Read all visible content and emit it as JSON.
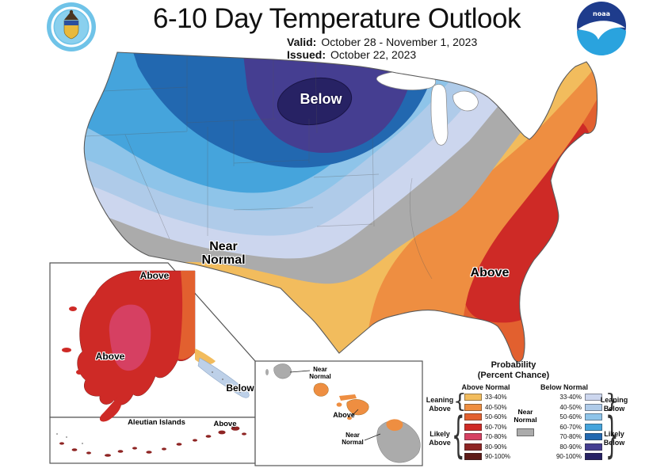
{
  "header": {
    "title": "6-10 Day Temperature Outlook",
    "valid_label": "Valid:",
    "valid_value": "October 28 - November 1, 2023",
    "issued_label": "Issued:",
    "issued_value": "October 22, 2023",
    "noaa_text": "noaa"
  },
  "conus": {
    "below_label": "Below",
    "near_line1": "Near",
    "near_line2": "Normal",
    "above_label": "Above"
  },
  "alaska": {
    "above_north": "Above",
    "above_southwest": "Above",
    "below_panhandle": "Below",
    "aleutian_title": "Aleutian Islands",
    "aleutian_above": "Above"
  },
  "hawaii": {
    "kauai_line1": "Near",
    "kauai_line2": "Normal",
    "central_above": "Above",
    "big_island_line1": "Near",
    "big_island_line2": "Normal"
  },
  "legend": {
    "title": "Probability",
    "subtitle": "(Percent Chance)",
    "above_header": "Above Normal",
    "below_header": "Below Normal",
    "near_line1": "Near",
    "near_line2": "Normal",
    "brace_open": "{",
    "brace_close": "}",
    "rows": [
      {
        "range": "33-40%",
        "above": "#F2BC5D",
        "below": "#CCD6EE"
      },
      {
        "range": "40-50%",
        "above": "#EE8E41",
        "below": "#AFCBE9"
      },
      {
        "range": "50-60%",
        "above": "#E2602F",
        "below": "#8EC4E9"
      },
      {
        "range": "60-70%",
        "above": "#CE2A26",
        "below": "#45A4DC"
      },
      {
        "range": "70-80%",
        "above": "#D64062",
        "below": "#2268B0"
      },
      {
        "range": "80-90%",
        "above": "#8E2423",
        "below": "#453E91"
      },
      {
        "range": "90-100%",
        "above": "#5E1B18",
        "below": "#272264"
      }
    ],
    "groups": {
      "leaning_above_l1": "Leaning",
      "leaning_above_l2": "Above",
      "likely_above_l1": "Likely",
      "likely_above_l2": "Above",
      "leaning_below_l1": "Leaning",
      "leaning_below_l2": "Below",
      "likely_below_l1": "Likely",
      "likely_below_l2": "Below"
    }
  },
  "palette": {
    "above": {
      "p33": "#F2BC5D",
      "p40": "#EE8E41",
      "p50": "#E2602F",
      "p60": "#CE2A26",
      "p70": "#D64062",
      "p80": "#8E2423",
      "p90": "#5E1B18"
    },
    "below": {
      "p33": "#CCD6EE",
      "p40": "#AFCBE9",
      "p50": "#8EC4E9",
      "p60": "#45A4DC",
      "p70": "#2268B0",
      "p80": "#453E91",
      "p90": "#272264"
    },
    "near_normal": "#ABABAB",
    "panhandle_blue": "#BDD0E8",
    "outline": "#5a5a5a",
    "state_line": "#555555",
    "doc_blue": "#6FC3E8",
    "noaa_navy": "#1E3C8C",
    "noaa_cyan": "#2AA3DE"
  }
}
